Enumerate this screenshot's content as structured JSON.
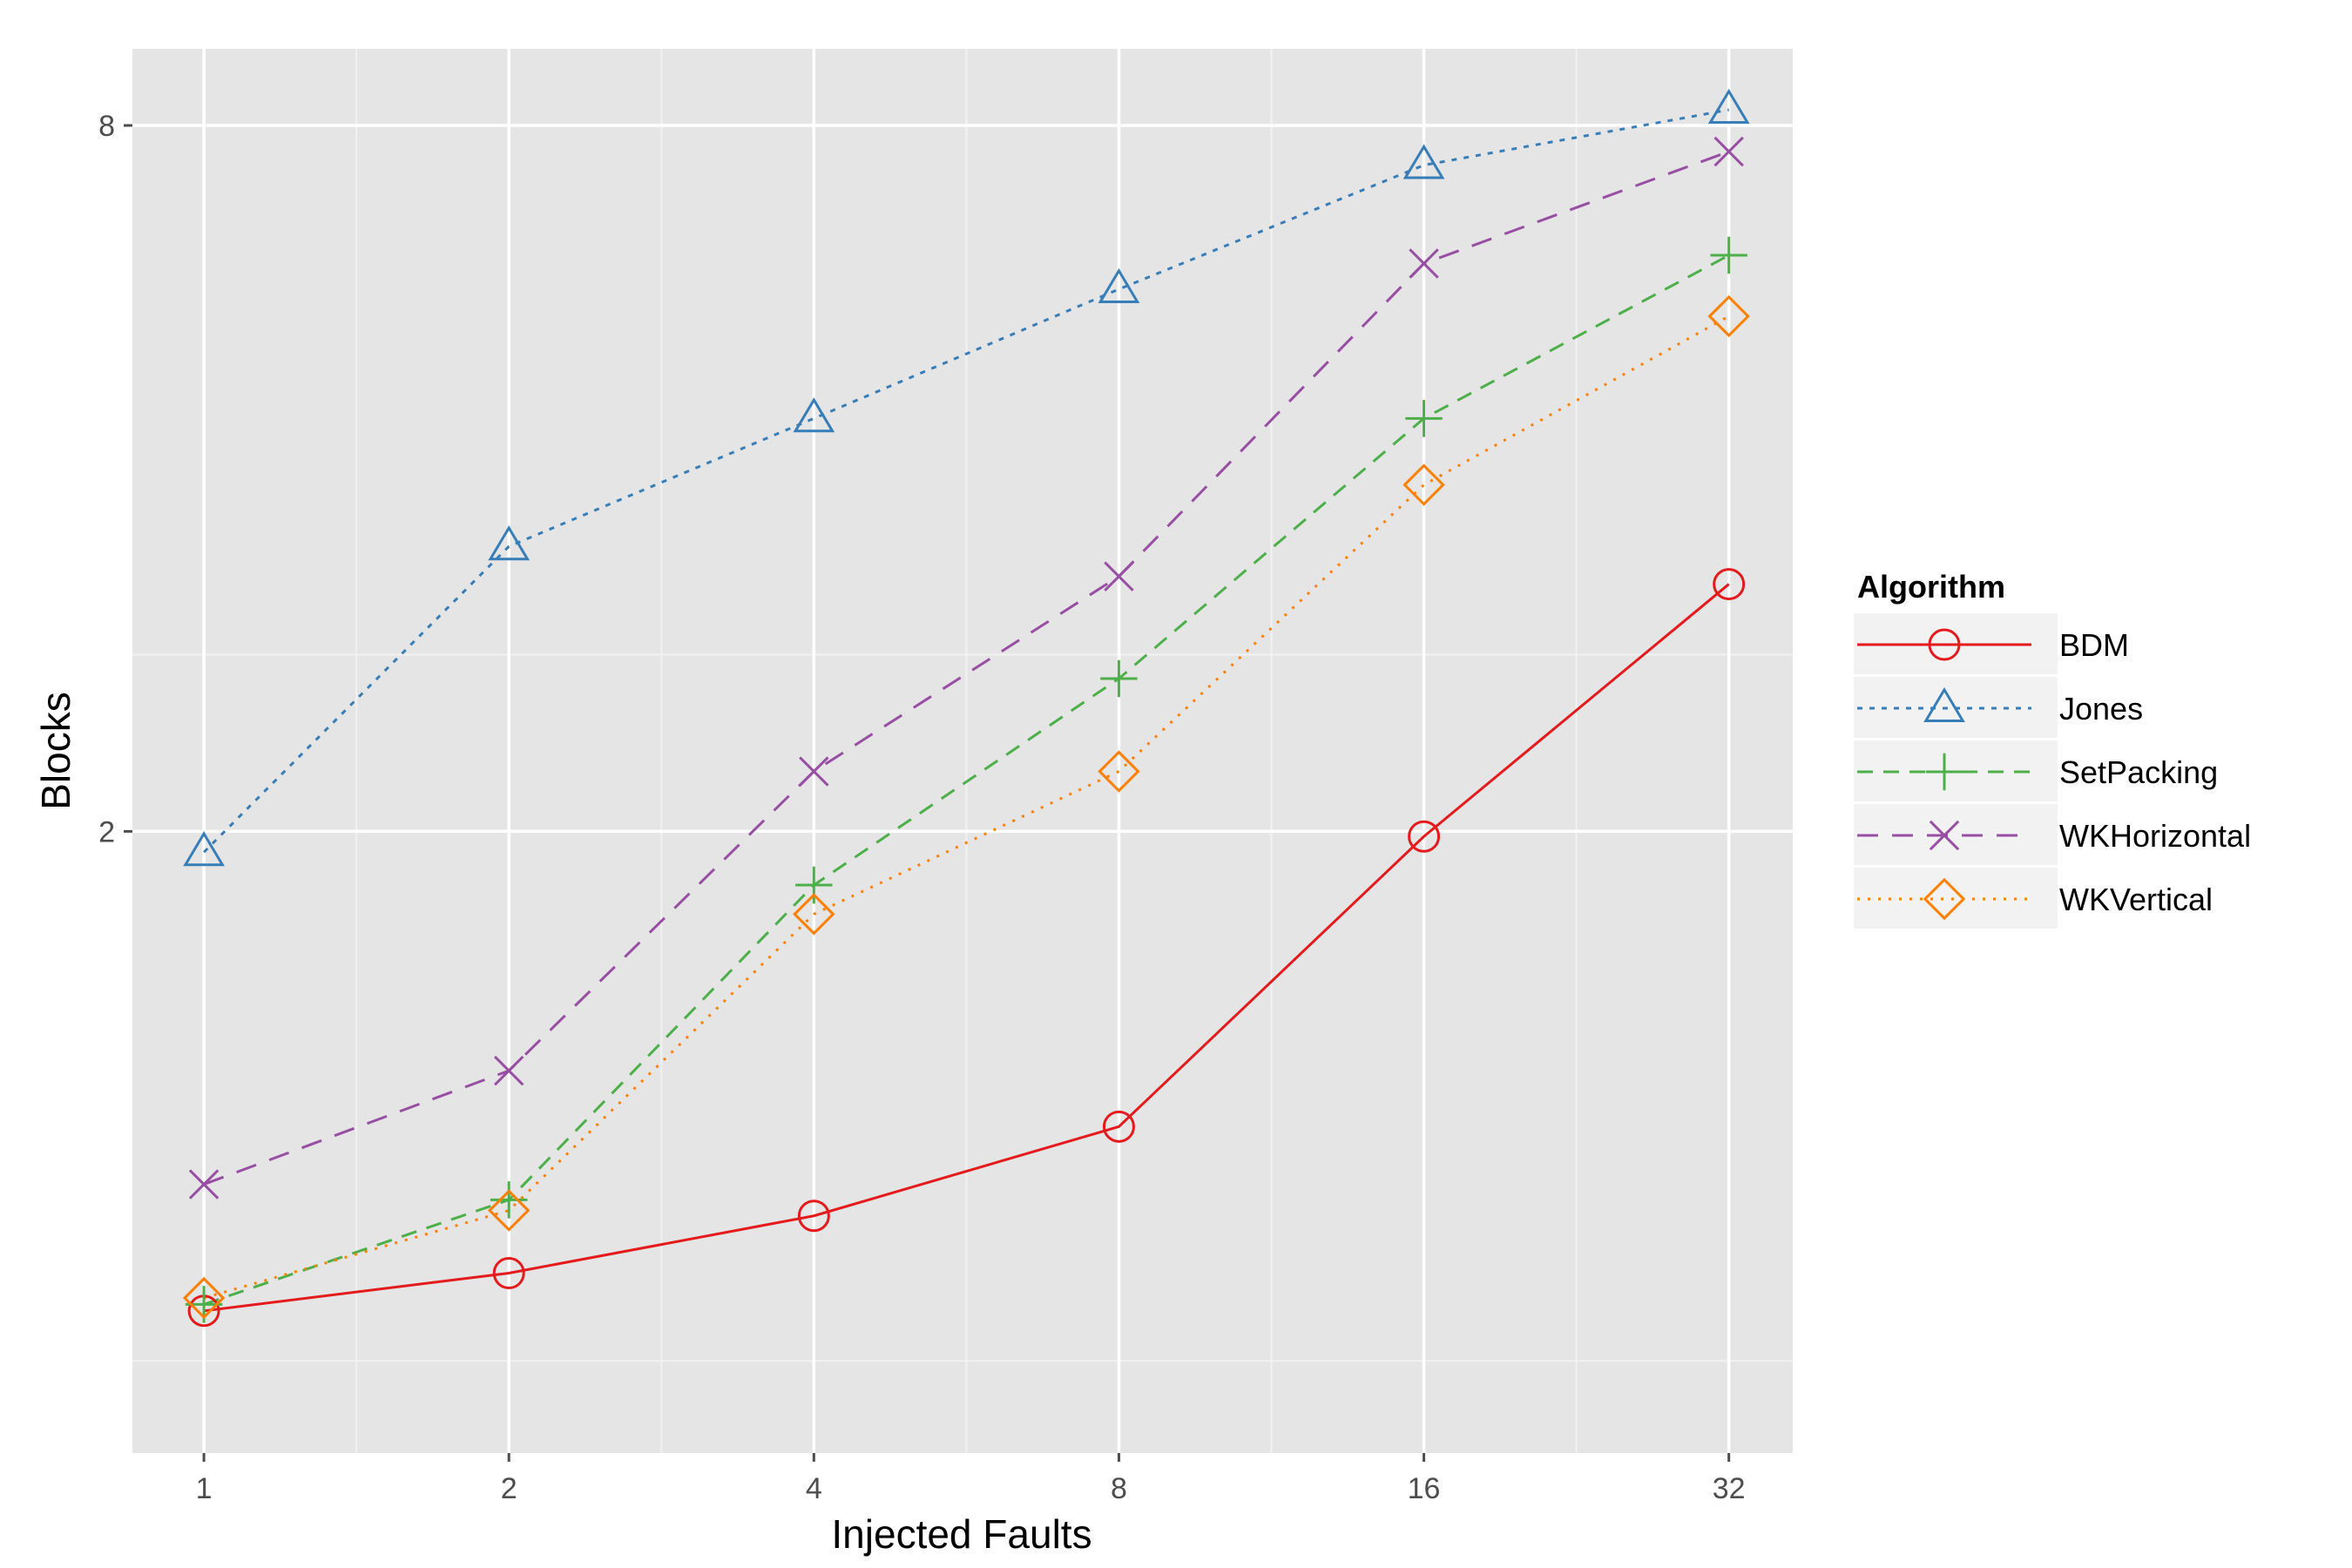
{
  "chart_data": {
    "type": "line",
    "title": "",
    "xlabel": "Injected Faults",
    "ylabel": "Blocks",
    "x": [
      1,
      2,
      4,
      8,
      16,
      32
    ],
    "x_tick_labels": [
      "1",
      "2",
      "4",
      "8",
      "16",
      "32"
    ],
    "y_tick_labels": [
      "2",
      "8"
    ],
    "x_scale": "log2",
    "y_scale": "log2",
    "xlim": [
      0.85,
      37
    ],
    "ylim": [
      0.59,
      9.3
    ],
    "grid": true,
    "legend_title": "Algorithm",
    "legend_position": "right",
    "series": [
      {
        "name": "BDM",
        "values": [
          0.78,
          0.84,
          0.94,
          1.12,
          1.98,
          3.25
        ],
        "color": "#e41a1c",
        "marker": "circle",
        "dash": "solid"
      },
      {
        "name": "Jones",
        "values": [
          1.92,
          3.5,
          4.5,
          5.8,
          7.4,
          8.25
        ],
        "color": "#377eb8",
        "marker": "triangle",
        "dash": "dotted"
      },
      {
        "name": "SetPacking",
        "values": [
          0.79,
          0.97,
          1.8,
          2.7,
          4.5,
          6.2
        ],
        "color": "#4daf4a",
        "marker": "plus",
        "dash": "dashed"
      },
      {
        "name": "WKHorizontal",
        "values": [
          1.0,
          1.25,
          2.25,
          3.3,
          6.1,
          7.6
        ],
        "color": "#984ea3",
        "marker": "cross",
        "dash": "longdash"
      },
      {
        "name": "WKVertical",
        "values": [
          0.8,
          0.95,
          1.7,
          2.25,
          3.95,
          5.5
        ],
        "color": "#ff7f00",
        "marker": "diamond",
        "dash": "finedot"
      }
    ]
  }
}
